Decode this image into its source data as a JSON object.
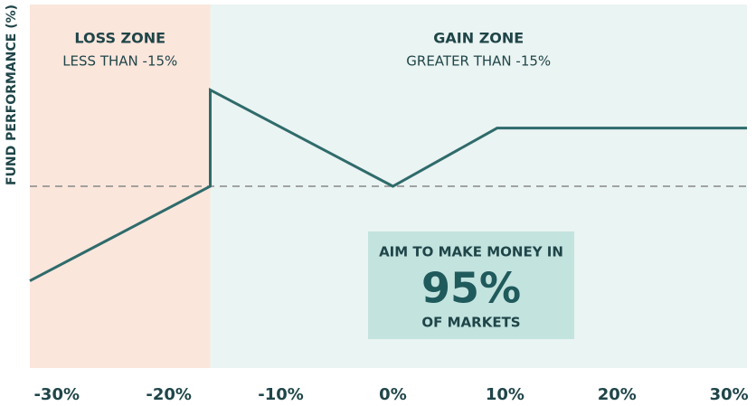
{
  "chart_data": {
    "type": "line",
    "y_label": "FUND PERFORMANCE (%)",
    "x": [
      -32.4,
      -16.3,
      -16.3,
      0,
      9.3,
      31.6
    ],
    "series": [
      {
        "color": "#2f6b6b",
        "values": [
          -5.2,
          0,
          5.3,
          0,
          3.2,
          3.2
        ]
      }
    ],
    "xlim": [
      -32.4,
      31.6
    ],
    "xticks": [
      {
        "value": -30,
        "label": "-30%"
      },
      {
        "value": -20,
        "label": "-20%"
      },
      {
        "value": -10,
        "label": "-10%"
      },
      {
        "value": 0,
        "label": "0%"
      },
      {
        "value": 10,
        "label": "10%"
      },
      {
        "value": 20,
        "label": "20%"
      },
      {
        "value": 30,
        "label": "30%"
      }
    ],
    "ylim": [
      -10,
      10
    ],
    "reference_y": 0,
    "zones": [
      {
        "label": "LOSS ZONE",
        "sublabel": "LESS THAN -15%",
        "x0": -32.4,
        "x1": -16.3,
        "color": "#fbe6dc"
      },
      {
        "label": "GAIN ZONE",
        "sublabel": "GREATER THAN -15%",
        "x0": -16.3,
        "x1": 31.6,
        "color": "#eaf4f2"
      }
    ],
    "callout": {
      "line1": "AIM TO MAKE MONEY IN",
      "value": "95%",
      "line2": "OF MARKETS",
      "color": "#c3e3df"
    }
  }
}
